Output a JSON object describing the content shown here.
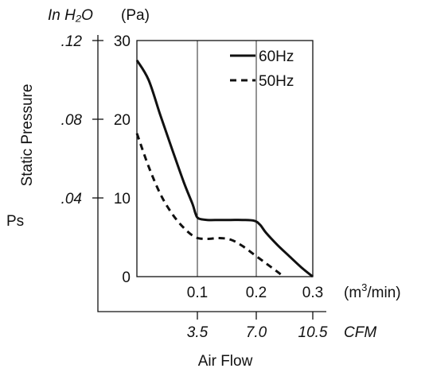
{
  "chart_data": {
    "type": "line",
    "x_unit": "(m³/min)",
    "x_ticks": [
      "0.1",
      "0.2",
      "0.3"
    ],
    "xlim": [
      0,
      0.3
    ],
    "ylim": [
      0,
      30
    ],
    "y_unit_pa": "(Pa)",
    "y_unit_inh2o": "In H₂O",
    "y_ticks_pa": [
      "0",
      "10",
      "20",
      "30"
    ],
    "y_ticks_inh2o": [
      ".04",
      ".08",
      ".12"
    ],
    "ylabel": "Static Pressure",
    "ylabel_symbol": "Ps",
    "cfm_ticks": [
      "3.5",
      "7.0",
      "10.5"
    ],
    "cfm_unit": "CFM",
    "xlabel": "Air Flow",
    "legend_position": "top-right",
    "series": [
      {
        "name": "60Hz",
        "style": "solid",
        "x": [
          0,
          0.02,
          0.04,
          0.06,
          0.08,
          0.095,
          0.1,
          0.105,
          0.12,
          0.14,
          0.16,
          0.18,
          0.2,
          0.21,
          0.22,
          0.24,
          0.26,
          0.28,
          0.3
        ],
        "y": [
          27.5,
          25.0,
          20.5,
          16.2,
          12.0,
          9.2,
          8.0,
          7.4,
          7.2,
          7.2,
          7.2,
          7.2,
          7.1,
          6.6,
          5.6,
          4.0,
          2.6,
          1.2,
          0
        ]
      },
      {
        "name": "50Hz",
        "style": "dashed",
        "x": [
          0,
          0.02,
          0.04,
          0.06,
          0.08,
          0.1,
          0.12,
          0.14,
          0.16,
          0.18,
          0.2,
          0.22,
          0.24,
          0.25
        ],
        "y": [
          18.2,
          14.0,
          10.5,
          8.0,
          6.2,
          5.0,
          4.8,
          4.9,
          4.7,
          3.9,
          2.8,
          1.7,
          0.6,
          0
        ]
      }
    ]
  }
}
